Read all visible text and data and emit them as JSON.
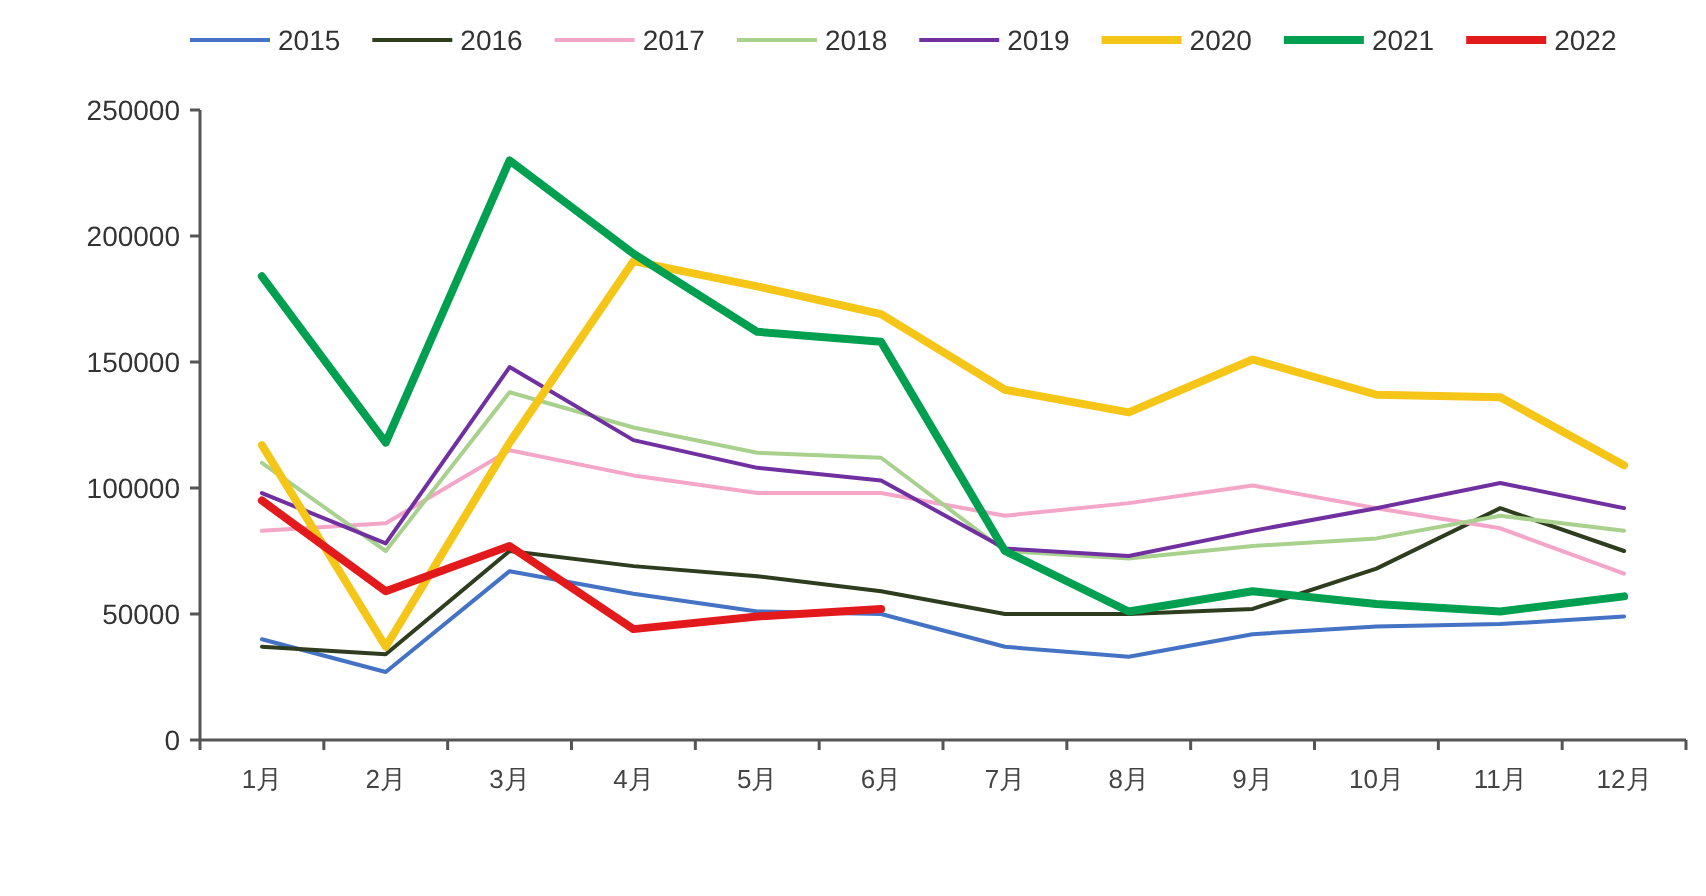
{
  "chart_data": {
    "type": "line",
    "categories": [
      "1月",
      "2月",
      "3月",
      "4月",
      "5月",
      "6月",
      "7月",
      "8月",
      "9月",
      "10月",
      "11月",
      "12月"
    ],
    "series": [
      {
        "name": "2015",
        "color": "#4472c4",
        "values": [
          40000,
          27000,
          67000,
          58000,
          51000,
          50000,
          37000,
          33000,
          42000,
          45000,
          46000,
          49000
        ]
      },
      {
        "name": "2016",
        "color": "#2e3d1e",
        "values": [
          37000,
          34000,
          75000,
          69000,
          65000,
          59000,
          50000,
          50000,
          52000,
          68000,
          92000,
          75000
        ]
      },
      {
        "name": "2017",
        "color": "#f4a6c9",
        "values": [
          83000,
          86000,
          115000,
          105000,
          98000,
          98000,
          89000,
          94000,
          101000,
          92000,
          84000,
          66000
        ]
      },
      {
        "name": "2018",
        "color": "#a9d18e",
        "values": [
          110000,
          75000,
          138000,
          124000,
          114000,
          112000,
          75000,
          72000,
          77000,
          80000,
          89000,
          83000
        ]
      },
      {
        "name": "2019",
        "color": "#7030a0",
        "values": [
          98000,
          78000,
          148000,
          119000,
          108000,
          103000,
          76000,
          73000,
          83000,
          92000,
          102000,
          92000
        ]
      },
      {
        "name": "2020",
        "color": "#f5c518",
        "values": [
          117000,
          37000,
          118000,
          190000,
          180000,
          169000,
          139000,
          130000,
          151000,
          137000,
          136000,
          109000
        ]
      },
      {
        "name": "2021",
        "color": "#00a050",
        "values": [
          184000,
          118000,
          230000,
          193000,
          162000,
          158000,
          75000,
          51000,
          59000,
          54000,
          51000,
          57000
        ]
      },
      {
        "name": "2022",
        "color": "#e31a1c",
        "values": [
          95000,
          59000,
          77000,
          44000,
          49000,
          52000,
          null,
          null,
          null,
          null,
          null,
          null
        ]
      }
    ],
    "ylim": [
      0,
      250000
    ],
    "yticks": [
      0,
      50000,
      100000,
      150000,
      200000,
      250000
    ],
    "grid": false,
    "legend": "top",
    "marker": "none",
    "line_style": "solid"
  }
}
